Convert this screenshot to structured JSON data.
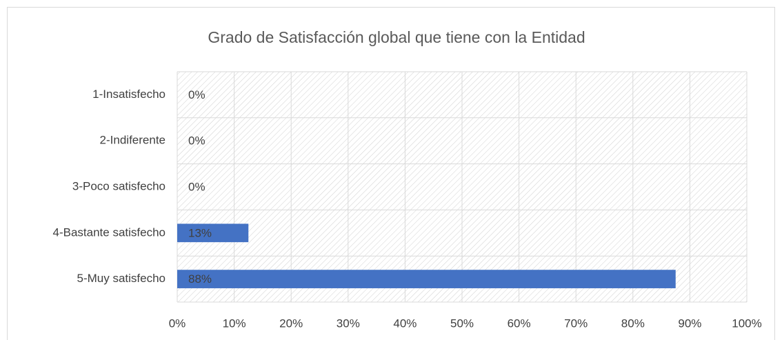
{
  "chart_data": {
    "type": "bar",
    "orientation": "horizontal",
    "title": "Grado de Satisfacción global que tiene con la Entidad",
    "categories": [
      "1-Insatisfecho",
      "2-Indiferente",
      "3-Poco satisfecho",
      "4-Bastante satisfecho",
      "5-Muy satisfecho"
    ],
    "values": [
      0,
      0,
      0,
      12.5,
      87.5
    ],
    "value_labels": [
      "0%",
      "0%",
      "0%",
      "13%",
      "88%"
    ],
    "color": "#4472c4",
    "xlim": [
      0,
      100
    ],
    "xticks": [
      {
        "value": 0,
        "label": "0%"
      },
      {
        "value": 10,
        "label": "10%"
      },
      {
        "value": 20,
        "label": "20%"
      },
      {
        "value": 30,
        "label": "30%"
      },
      {
        "value": 40,
        "label": "40%"
      },
      {
        "value": 50,
        "label": "50%"
      },
      {
        "value": 60,
        "label": "60%"
      },
      {
        "value": 70,
        "label": "70%"
      },
      {
        "value": 80,
        "label": "80%"
      },
      {
        "value": 90,
        "label": "90%"
      },
      {
        "value": 100,
        "label": "100%"
      }
    ],
    "grid": true
  }
}
